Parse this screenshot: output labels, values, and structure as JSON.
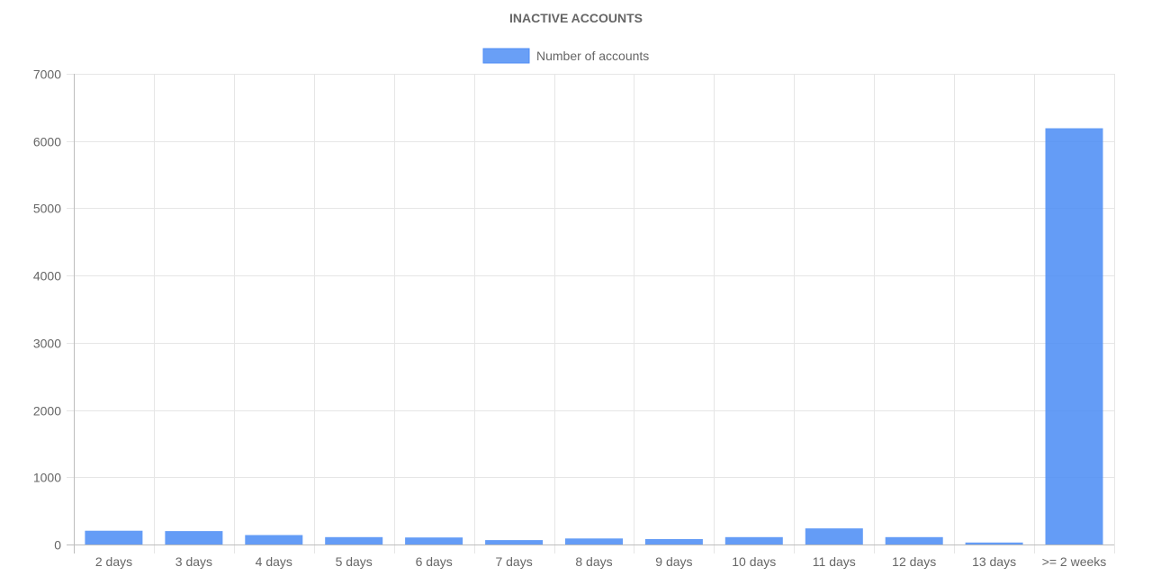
{
  "chart_data": {
    "type": "bar",
    "title": "INACTIVE ACCOUNTS",
    "categories": [
      "2 days",
      "3 days",
      "4 days",
      "5 days",
      "6 days",
      "7 days",
      "8 days",
      "9 days",
      "10 days",
      "11 days",
      "12 days",
      "13 days",
      ">= 2 weeks"
    ],
    "series": [
      {
        "name": "Number of accounts",
        "values": [
          205,
          200,
          140,
          110,
          105,
          65,
          90,
          80,
          110,
          240,
          110,
          30,
          6190
        ],
        "color": "#4f8ef5"
      }
    ],
    "yticks": [
      0,
      1000,
      2000,
      3000,
      4000,
      5000,
      6000,
      7000
    ],
    "ylim": [
      0,
      7000
    ],
    "grid": true,
    "legend_position": "top"
  }
}
